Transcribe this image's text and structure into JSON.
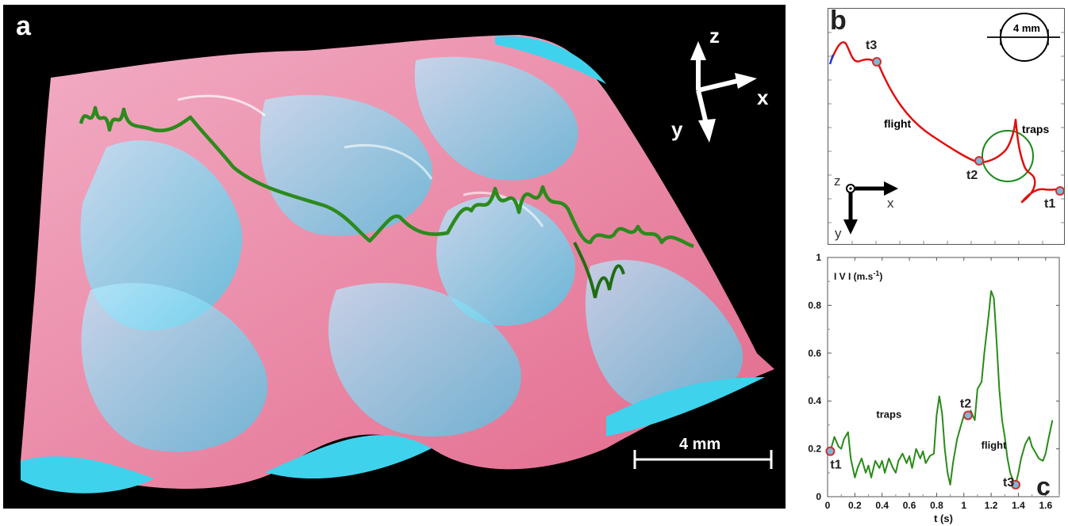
{
  "panel_a": {
    "label": "a",
    "axes": {
      "z": "z",
      "x": "x",
      "y": "y"
    },
    "scale_bar": "4 mm",
    "colors": {
      "background": "#000000",
      "surface_pink": "#f5a0be",
      "surface_cyan": "#5fd6f0",
      "trajectory": "#2c8a1c"
    }
  },
  "panel_b": {
    "label": "b",
    "scale_circle": "4 mm",
    "labels": {
      "flight": "flight",
      "traps": "traps",
      "t1": "t1",
      "t2": "t2",
      "t3": "t3"
    },
    "axes": {
      "z": "z",
      "x": "x",
      "y": "y"
    },
    "colors": {
      "path": "#e01010",
      "trap_circle": "#1a8a1a",
      "marker": "#7fb6d8"
    }
  },
  "chart_data": {
    "type": "line",
    "title": "",
    "xlabel": "t (s)",
    "ylabel": "I V I (m.s-1)",
    "xlim": [
      0,
      1.7
    ],
    "ylim": [
      0,
      1
    ],
    "xticks": [
      "0",
      "0.2",
      "0.4",
      "0.6",
      "0.8",
      "1",
      "1.2",
      "1.4",
      "1.6"
    ],
    "yticks": [
      "0",
      "0.2",
      "0.4",
      "0.6",
      "0.8",
      "1"
    ],
    "panel_label": "c",
    "annotations": {
      "traps": "traps",
      "flight": "flight"
    },
    "markers": [
      {
        "label": "t1",
        "x": 0.02,
        "y": 0.19
      },
      {
        "label": "t2",
        "x": 1.03,
        "y": 0.34
      },
      {
        "label": "t3",
        "x": 1.38,
        "y": 0.05
      }
    ],
    "series": [
      {
        "color": "#2a8a1a",
        "x": [
          0.0,
          0.02,
          0.05,
          0.08,
          0.1,
          0.12,
          0.15,
          0.17,
          0.2,
          0.22,
          0.25,
          0.28,
          0.3,
          0.32,
          0.35,
          0.38,
          0.4,
          0.42,
          0.45,
          0.48,
          0.5,
          0.52,
          0.55,
          0.58,
          0.6,
          0.62,
          0.65,
          0.68,
          0.7,
          0.72,
          0.75,
          0.78,
          0.8,
          0.82,
          0.84,
          0.86,
          0.88,
          0.9,
          0.92,
          0.95,
          0.98,
          1.0,
          1.03,
          1.05,
          1.08,
          1.1,
          1.13,
          1.15,
          1.18,
          1.2,
          1.22,
          1.24,
          1.26,
          1.28,
          1.3,
          1.32,
          1.34,
          1.36,
          1.38,
          1.4,
          1.42,
          1.45,
          1.48,
          1.5,
          1.52,
          1.55,
          1.58,
          1.6,
          1.62,
          1.65
        ],
        "y": [
          0.2,
          0.19,
          0.25,
          0.21,
          0.2,
          0.24,
          0.27,
          0.16,
          0.08,
          0.12,
          0.16,
          0.1,
          0.13,
          0.08,
          0.15,
          0.12,
          0.15,
          0.1,
          0.16,
          0.12,
          0.1,
          0.15,
          0.18,
          0.14,
          0.17,
          0.12,
          0.2,
          0.16,
          0.19,
          0.14,
          0.17,
          0.18,
          0.34,
          0.42,
          0.35,
          0.2,
          0.1,
          0.05,
          0.14,
          0.24,
          0.3,
          0.34,
          0.33,
          0.36,
          0.32,
          0.45,
          0.48,
          0.6,
          0.75,
          0.86,
          0.83,
          0.65,
          0.45,
          0.32,
          0.25,
          0.16,
          0.1,
          0.07,
          0.05,
          0.1,
          0.16,
          0.22,
          0.25,
          0.21,
          0.19,
          0.16,
          0.15,
          0.18,
          0.24,
          0.32
        ]
      }
    ]
  }
}
